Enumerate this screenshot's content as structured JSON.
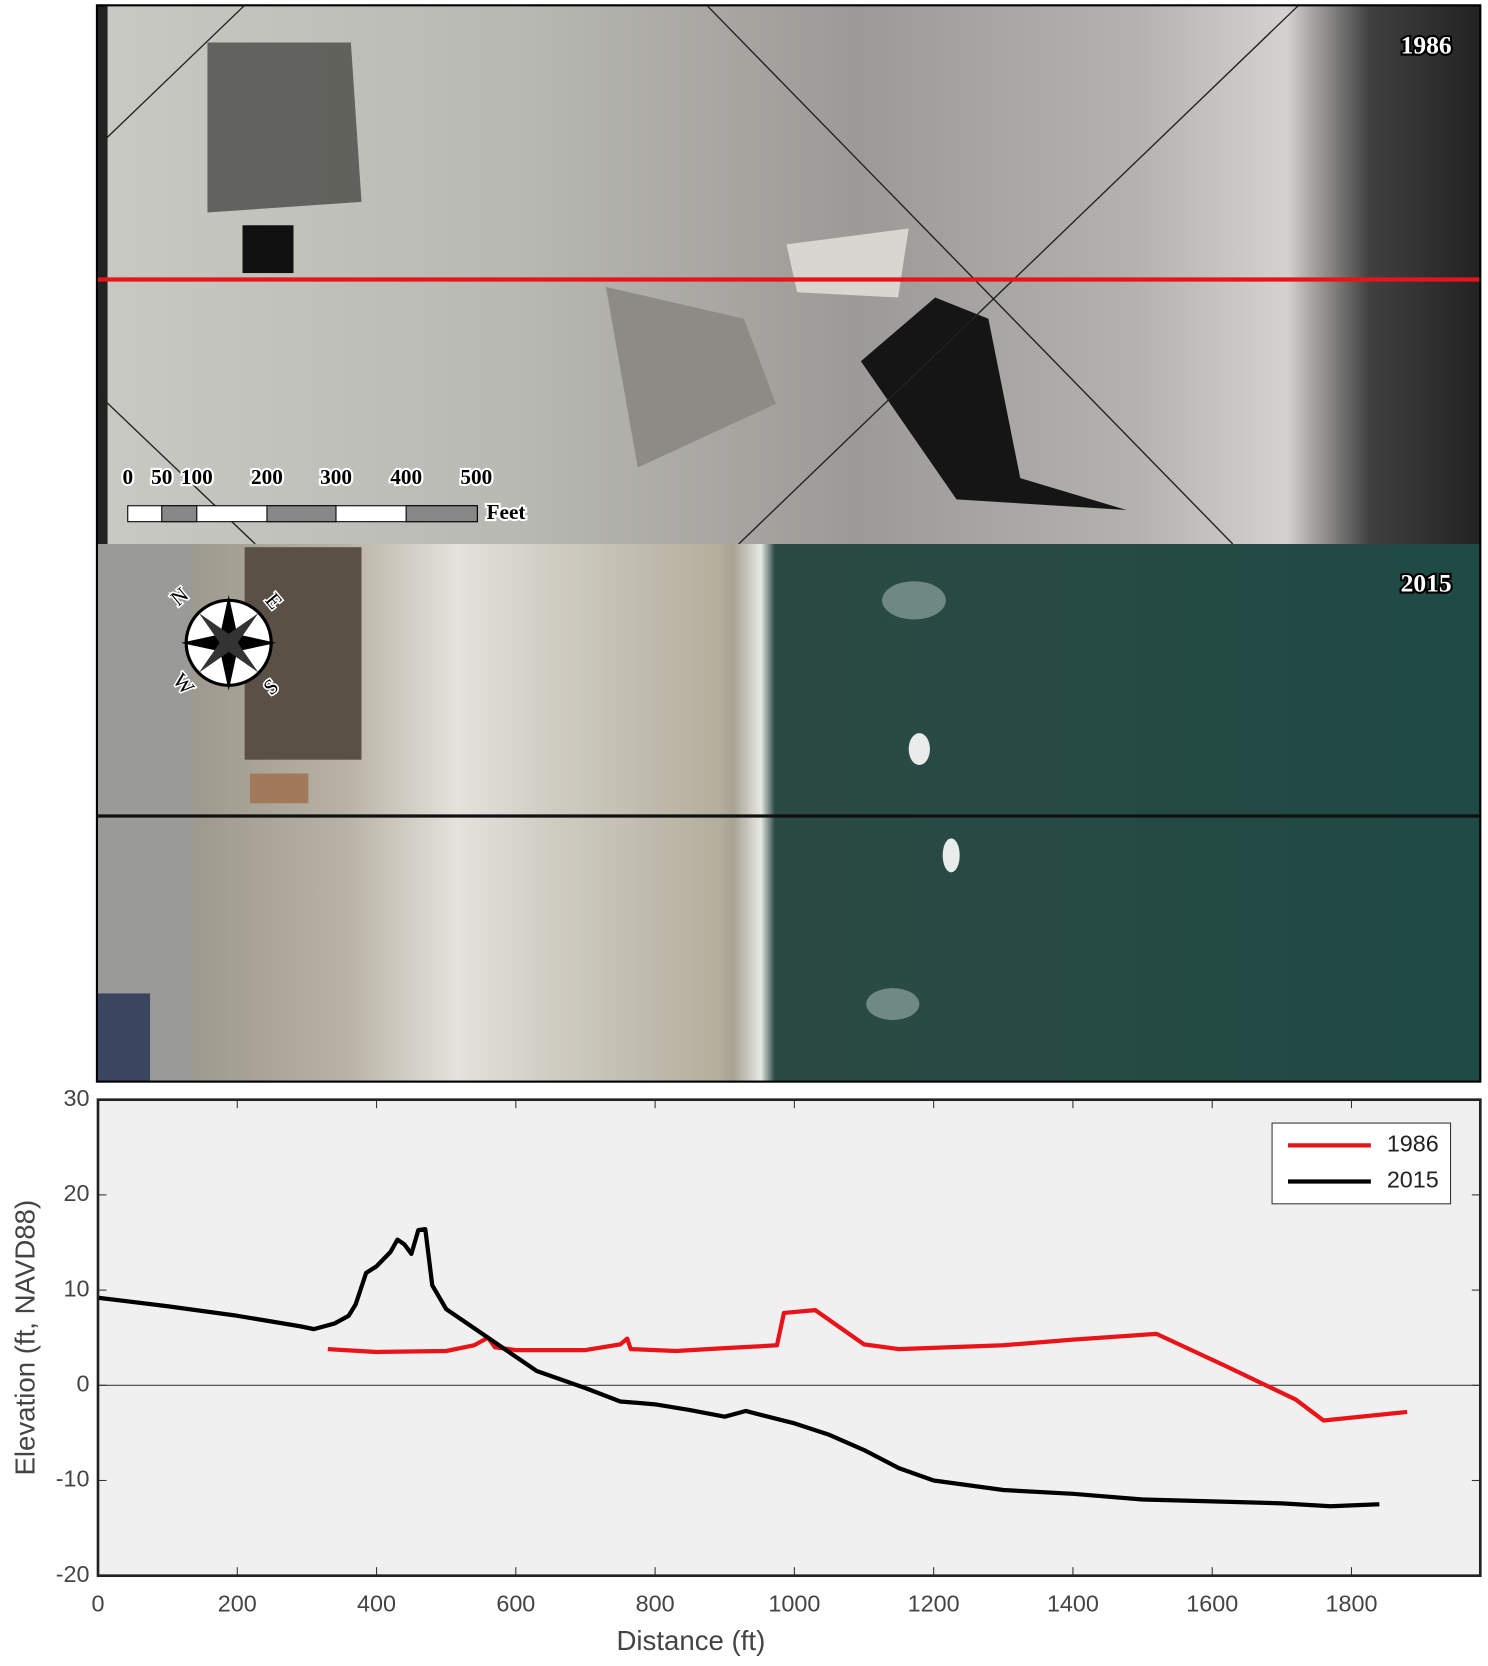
{
  "photos": {
    "top_year": "1986",
    "bottom_year": "2015",
    "scale_labels": [
      "0",
      "50",
      "100",
      "200",
      "300",
      "400",
      "500"
    ],
    "scale_unit": "Feet",
    "compass": [
      "N",
      "E",
      "S",
      "W"
    ]
  },
  "chart_data": {
    "type": "line",
    "xlabel": "Distance (ft)",
    "ylabel": "Elevation (ft, NAVD88)",
    "xlim": [
      0,
      1985
    ],
    "ylim": [
      -20,
      30
    ],
    "xticks": [
      0,
      200,
      400,
      600,
      800,
      1000,
      1200,
      1400,
      1600,
      1800
    ],
    "yticks": [
      -20,
      -10,
      0,
      10,
      20,
      30
    ],
    "zero_line": true,
    "legend": "upper right",
    "series": [
      {
        "name": "1986",
        "color": "#e8141a",
        "x": [
          330,
          400,
          500,
          540,
          560,
          570,
          600,
          700,
          750,
          760,
          765,
          830,
          900,
          975,
          985,
          1030,
          1100,
          1150,
          1300,
          1400,
          1520,
          1620,
          1720,
          1760,
          1880
        ],
        "values": [
          3.8,
          3.5,
          3.6,
          4.2,
          5,
          4,
          3.7,
          3.7,
          4.3,
          4.9,
          3.8,
          3.6,
          3.9,
          4.2,
          7.6,
          7.9,
          4.3,
          3.8,
          4.2,
          4.8,
          5.4,
          2,
          -1.5,
          -3.7,
          -2.8
        ]
      },
      {
        "name": "2015",
        "color": "#000000",
        "x": [
          0,
          100,
          200,
          290,
          310,
          340,
          360,
          370,
          385,
          400,
          420,
          430,
          440,
          450,
          460,
          470,
          480,
          500,
          550,
          600,
          630,
          700,
          750,
          800,
          850,
          900,
          930,
          1000,
          1050,
          1100,
          1150,
          1200,
          1300,
          1400,
          1500,
          1600,
          1700,
          1770,
          1840
        ],
        "values": [
          9.2,
          8.3,
          7.3,
          6.2,
          5.9,
          6.5,
          7.3,
          8.5,
          11.8,
          12.5,
          14,
          15.3,
          14.8,
          13.8,
          16.3,
          16.4,
          10.5,
          8,
          5.5,
          3,
          1.5,
          -0.3,
          -1.7,
          -2,
          -2.6,
          -3.3,
          -2.7,
          -4,
          -5.2,
          -6.8,
          -8.7,
          -10,
          -11,
          -11.4,
          -12,
          -12.2,
          -12.4,
          -12.7,
          -12.5
        ]
      }
    ]
  }
}
